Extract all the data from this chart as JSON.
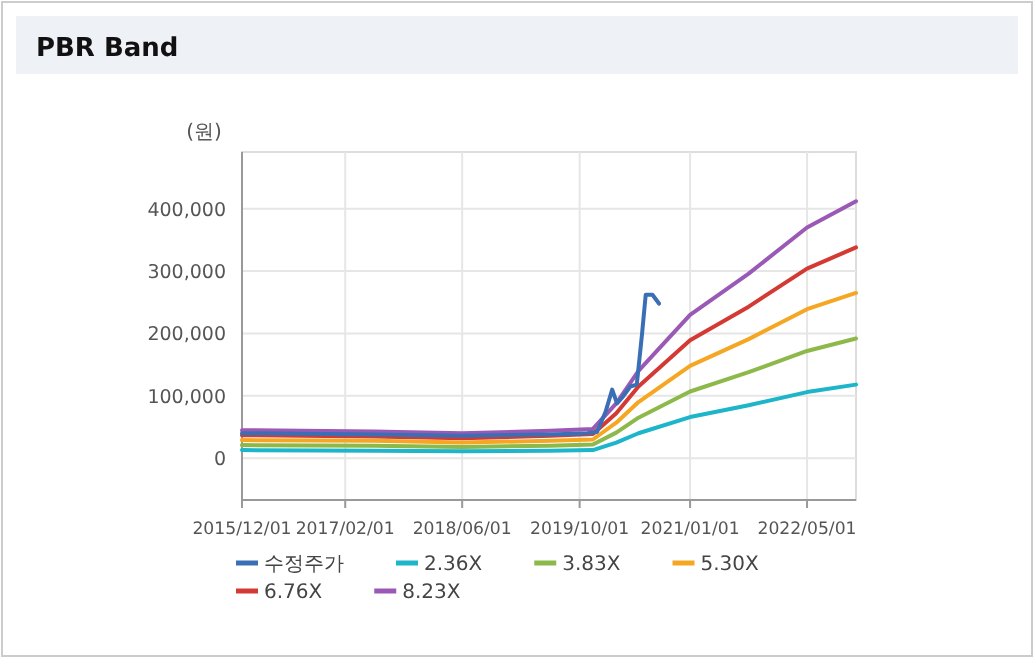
{
  "chart_data": {
    "type": "line",
    "title": "PBR Band",
    "ylabel": "(원)",
    "grid": true,
    "legend": "bottom",
    "marker": "none",
    "line_style": "solid",
    "xlim": [
      "2015-12-01",
      "2022-11-20"
    ],
    "ylim": [
      -67000,
      491000
    ],
    "xticks": [
      {
        "value": "2015-12-01",
        "label": "2015/12/01"
      },
      {
        "value": "2017-02-01",
        "label": "2017/02/01"
      },
      {
        "value": "2018-06-01",
        "label": "2018/06/01"
      },
      {
        "value": "2019-10-01",
        "label": "2019/10/01"
      },
      {
        "value": "2021-01-01",
        "label": "2021/01/01"
      },
      {
        "value": "2022-05-01",
        "label": "2022/05/01"
      }
    ],
    "yticks": [
      0,
      {
        "value": 100000,
        "label": "100,000"
      },
      {
        "value": 200000,
        "label": "200,000"
      },
      {
        "value": 300000,
        "label": "300,000"
      },
      {
        "value": 400000,
        "label": "400,000"
      }
    ],
    "x": [
      "2015-12-01",
      "2017-06-01",
      "2018-06-01",
      "2019-06-01",
      "2019-11-25",
      "2020-03-01",
      "2020-06-01",
      "2021-01-01",
      "2021-09-01",
      "2022-05-01",
      "2022-11-20"
    ],
    "series": [
      {
        "name": "수정주가",
        "color": "#3a6fb5",
        "x": [
          "2015-12-01",
          "2017-06-01",
          "2018-06-01",
          "2019-06-01",
          "2019-11-01",
          "2019-12-12",
          "2020-01-17",
          "2020-02-13",
          "2020-03-04",
          "2020-03-31",
          "2020-04-28",
          "2020-05-25",
          "2020-06-16",
          "2020-07-01",
          "2020-07-29",
          "2020-08-25"
        ],
        "values": [
          40000,
          38000,
          36000,
          38000,
          40000,
          42000,
          75000,
          110000,
          88000,
          100000,
          115000,
          118000,
          200000,
          262000,
          262000,
          248000
        ]
      },
      {
        "name": "2.36X",
        "color": "#1cb5c9",
        "values": [
          13000,
          12000,
          11000,
          12000,
          13000,
          25000,
          40000,
          66000,
          85000,
          106000,
          118000
        ]
      },
      {
        "name": "3.83X",
        "color": "#8db84a",
        "values": [
          21000,
          20000,
          18000,
          20000,
          22000,
          41000,
          65000,
          107000,
          138000,
          172000,
          192000
        ]
      },
      {
        "name": "5.30X",
        "color": "#f5a623",
        "values": [
          29000,
          28000,
          25000,
          28000,
          30000,
          57000,
          90000,
          148000,
          191000,
          239000,
          265000
        ]
      },
      {
        "name": "6.76X",
        "color": "#d33a33",
        "values": [
          37000,
          35000,
          32000,
          36000,
          39000,
          72000,
          115000,
          189000,
          243000,
          304000,
          338000
        ]
      },
      {
        "name": "8.23X",
        "color": "#9b59b6",
        "values": [
          45000,
          43000,
          40000,
          44000,
          47000,
          88000,
          140000,
          230000,
          296000,
          370000,
          412000
        ]
      }
    ]
  }
}
